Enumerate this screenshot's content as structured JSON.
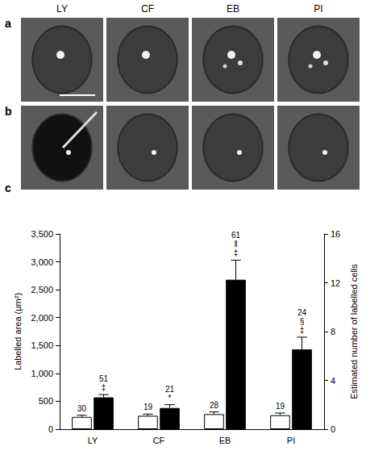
{
  "column_labels": [
    "LY",
    "CF",
    "EB",
    "PI"
  ],
  "panel_labels": [
    "a",
    "b",
    "c"
  ],
  "chart_data": {
    "type": "bar",
    "categories": [
      "LY",
      "CF",
      "EB",
      "PI"
    ],
    "series": [
      {
        "color": "#ffffff",
        "values": [
          220,
          240,
          270,
          250
        ],
        "errors": [
          30,
          30,
          40,
          40
        ],
        "annotations": [
          [
            "30"
          ],
          [
            "19"
          ],
          [
            "28"
          ],
          [
            "19"
          ]
        ]
      },
      {
        "color": "#000000",
        "values": [
          570,
          380,
          2680,
          1430
        ],
        "errors": [
          50,
          60,
          350,
          220
        ],
        "annotations": [
          [
            "51",
            "‡"
          ],
          [
            "21",
            "*"
          ],
          [
            "61",
            "‖",
            "‡"
          ],
          [
            "24",
            "§",
            "‡"
          ]
        ]
      }
    ],
    "y_label": "Labelled area (μm²)",
    "y2_label": "Estimated number of labelled cells",
    "ylim": [
      0,
      3500
    ],
    "yticks": [
      0,
      500,
      {
        "value": 1000,
        "label": "1,000"
      },
      {
        "value": 1500,
        "label": "1,500"
      },
      {
        "value": 2000,
        "label": "2,000"
      },
      {
        "value": 2500,
        "label": "2,500"
      },
      {
        "value": 3000,
        "label": "3,000"
      },
      {
        "value": 3500,
        "label": "3,500"
      }
    ],
    "y2lim": [
      0,
      16
    ],
    "y2ticks": [
      0,
      4,
      8,
      12,
      16
    ],
    "grid": false
  }
}
